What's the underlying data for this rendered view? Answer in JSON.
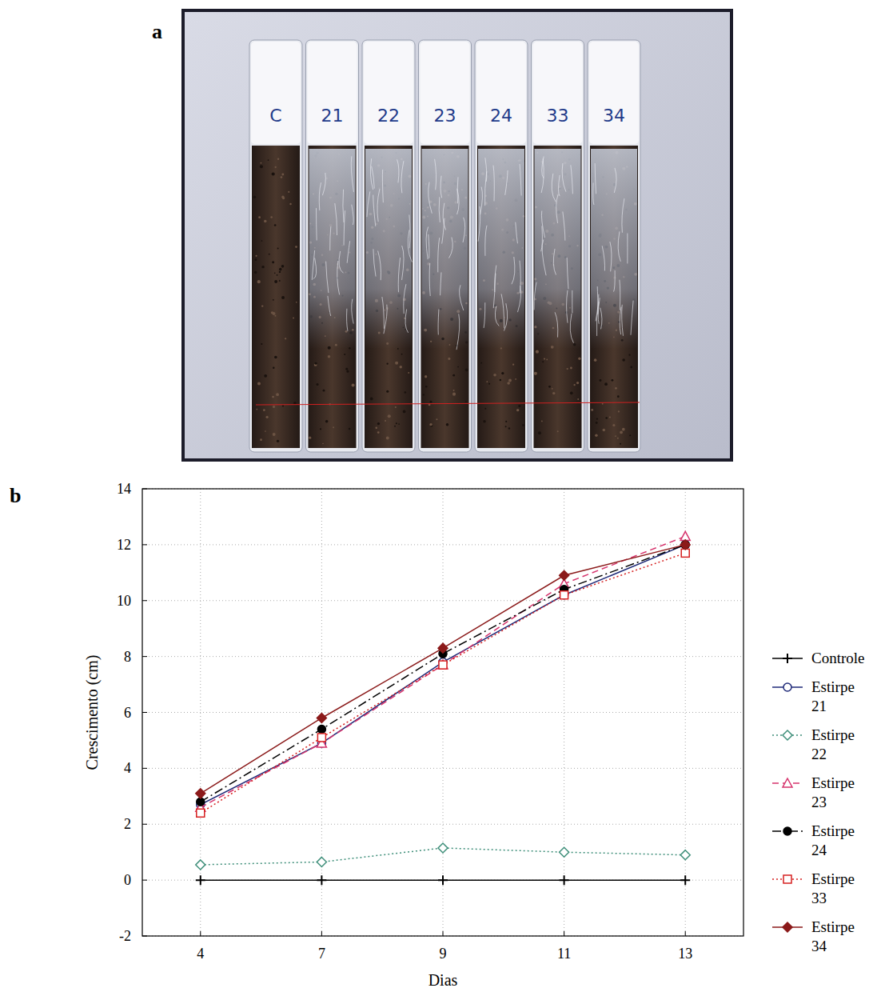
{
  "photo": {
    "panel_label": "a",
    "tube_labels": [
      "C",
      "21",
      "22",
      "23",
      "24",
      "33",
      "34"
    ]
  },
  "chart_data": {
    "type": "line",
    "panel_label": "b",
    "x_label": "Dias",
    "y_label": "Crescimento (cm)",
    "categories": [
      "4",
      "7",
      "9",
      "11",
      "13"
    ],
    "ylim": [
      -2,
      14
    ],
    "yticks": [
      -2,
      0,
      2,
      4,
      6,
      8,
      10,
      12,
      14
    ],
    "grid": true,
    "legend": "right",
    "series": [
      {
        "name": "Controle",
        "color": "#000000",
        "marker": "plus",
        "line_style": "solid",
        "values": [
          0,
          0,
          0,
          0,
          0
        ]
      },
      {
        "name": "Estirpe 21",
        "color": "#1f2a78",
        "marker": "open-circle",
        "line_style": "solid",
        "values": [
          2.7,
          4.9,
          7.8,
          10.2,
          12.0
        ]
      },
      {
        "name": "Estirpe 22",
        "color": "#3f8f7a",
        "marker": "open-diamond",
        "line_style": "dotted",
        "values": [
          0.55,
          0.65,
          1.15,
          1.0,
          0.9
        ]
      },
      {
        "name": "Estirpe 23",
        "color": "#d6336c",
        "marker": "open-triangle",
        "line_style": "dashed",
        "values": [
          2.6,
          4.9,
          7.7,
          10.6,
          12.3
        ]
      },
      {
        "name": "Estirpe 24",
        "color": "#000000",
        "marker": "circle",
        "line_style": "dashdot",
        "values": [
          2.8,
          5.4,
          8.1,
          10.4,
          12.0
        ]
      },
      {
        "name": "Estirpe 33",
        "color": "#d62020",
        "marker": "open-square",
        "line_style": "dotted",
        "values": [
          2.4,
          5.1,
          7.7,
          10.2,
          11.7
        ]
      },
      {
        "name": "Estirpe 34",
        "color": "#8b1a1a",
        "marker": "diamond",
        "line_style": "solid",
        "values": [
          3.1,
          5.8,
          8.3,
          10.9,
          12.0
        ]
      }
    ]
  }
}
